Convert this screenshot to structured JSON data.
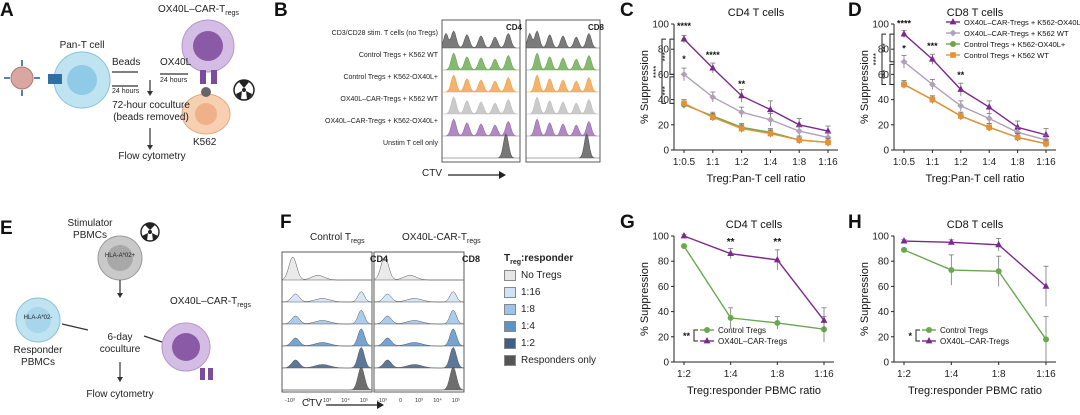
{
  "panel_labels": {
    "A": "A",
    "B": "B",
    "C": "C",
    "D": "D",
    "E": "E",
    "F": "F",
    "G": "G",
    "H": "H"
  },
  "panelA": {
    "pan_t": "Pan-T cell",
    "car": "OX40L–CAR-T",
    "car_sub": "regs",
    "beads": "Beads",
    "ox40l": "OX40L",
    "h24a": "24 hours",
    "h24b": "24 hours",
    "coculture_1": "72-hour coculture",
    "coculture_2": "(beads removed)",
    "k562": "K562",
    "flow": "Flow cytometry"
  },
  "panelB": {
    "rows": [
      "CD3/CD28 stim. T cells (no Tregs)",
      "Control Tregs + K562 WT",
      "Control Tregs + K562-OX40L+",
      "OX40L–CAR-Tregs + K562 WT",
      "OX40L–CAR-Tregs + K562-OX40L+",
      "Unstim T cell only"
    ],
    "hist1": "CD4",
    "hist2": "CD8",
    "ctv": "CTV",
    "colors": [
      "#5a5a5a",
      "#6aa84f",
      "#f0a04b",
      "#bdbdbd",
      "#9b6bb0",
      "#555555"
    ]
  },
  "panelE": {
    "stimulator_1": "Stimulator",
    "stimulator_2": "PBMCs",
    "hla_pos": "HLA-A*02+",
    "hla_neg": "HLA-A*02-",
    "car": "OX40L–CAR-T",
    "car_sub": "regs",
    "responder_1": "Responder",
    "responder_2": "PBMCs",
    "coculture_1": "6-day",
    "coculture_2": "coculture",
    "flow": "Flow cytometry"
  },
  "panelF": {
    "title1": "Control T",
    "title1_sub": "regs",
    "title2": "OX40L-CAR-T",
    "title2_sub": "regs",
    "hist1": "CD4",
    "hist2": "CD8",
    "ctv": "CTV",
    "legend_title": "T",
    "legend_title_sub": "reg",
    "legend_title_rest": ":responder",
    "legend": [
      {
        "label": "No Tregs",
        "color": "#e6e6e6"
      },
      {
        "label": "1:16",
        "color": "#cfe2f6"
      },
      {
        "label": "1:8",
        "color": "#9cc3ea"
      },
      {
        "label": "1:4",
        "color": "#5f93c8"
      },
      {
        "label": "1:2",
        "color": "#3f5f86"
      },
      {
        "label": "Responders only",
        "color": "#555555"
      }
    ],
    "axis_ticks": [
      "-10³",
      "0",
      "10³",
      "10⁴",
      "10⁵"
    ]
  },
  "chart_data": [
    {
      "id": "C",
      "type": "line",
      "title": "CD4 T cells",
      "xlabel": "Treg:Pan-T cell ratio",
      "ylabel": "% Suppression",
      "categories": [
        "1:0.5",
        "1:1",
        "1:2",
        "1:4",
        "1:8",
        "1:16"
      ],
      "ylim": [
        0,
        100
      ],
      "yticks": [
        0,
        20,
        40,
        60,
        80,
        100
      ],
      "series": [
        {
          "name": "OX40L–CAR-Tregs + K562-OX40L+",
          "color": "#7b2a8c",
          "marker": "triangle",
          "values": [
            88,
            65,
            43,
            32,
            20,
            15
          ],
          "err": [
            3,
            4,
            5,
            7,
            5,
            4
          ]
        },
        {
          "name": "OX40L–CAR-Tregs + K562 WT",
          "color": "#b0a0b8",
          "marker": "diamond",
          "values": [
            60,
            42,
            30,
            24,
            15,
            10
          ],
          "err": [
            5,
            4,
            4,
            5,
            4,
            4
          ]
        },
        {
          "name": "Control Tregs + K562-OX40L+",
          "color": "#6aa84f",
          "marker": "circle",
          "values": [
            36,
            27,
            18,
            14,
            8,
            6
          ],
          "err": [
            3,
            3,
            3,
            3,
            3,
            3
          ]
        },
        {
          "name": "Control Tregs + K562 WT",
          "color": "#e69138",
          "marker": "square",
          "values": [
            37,
            26,
            17,
            13,
            8,
            6
          ],
          "err": [
            3,
            3,
            3,
            3,
            3,
            3
          ]
        }
      ],
      "sig": [
        "****",
        "***",
        "****",
        "**",
        "*",
        "***",
        "****"
      ]
    },
    {
      "id": "D",
      "type": "line",
      "title": "CD8 T cells",
      "xlabel": "Treg:Pan-T cell ratio",
      "ylabel": "% Suppression",
      "categories": [
        "1:0.5",
        "1:1",
        "1:2",
        "1:4",
        "1:8",
        "1:16"
      ],
      "ylim": [
        0,
        100
      ],
      "yticks": [
        0,
        20,
        40,
        60,
        80,
        100
      ],
      "series": [
        {
          "name": "OX40L–CAR-Tregs + K562-OX40L+",
          "color": "#7b2a8c",
          "marker": "triangle",
          "values": [
            92,
            72,
            48,
            34,
            18,
            12
          ],
          "err": [
            3,
            4,
            5,
            5,
            5,
            5
          ]
        },
        {
          "name": "OX40L–CAR-Tregs + K562 WT",
          "color": "#b0a0b8",
          "marker": "diamond",
          "values": [
            70,
            52,
            35,
            25,
            14,
            8
          ],
          "err": [
            5,
            4,
            4,
            4,
            4,
            4
          ]
        },
        {
          "name": "Control Tregs + K562-OX40L+",
          "color": "#6aa84f",
          "marker": "circle",
          "values": [
            52,
            40,
            27,
            18,
            10,
            5
          ],
          "err": [
            3,
            3,
            3,
            3,
            3,
            3
          ]
        },
        {
          "name": "Control Tregs + K562 WT",
          "color": "#e69138",
          "marker": "square",
          "values": [
            52,
            40,
            27,
            18,
            10,
            5
          ],
          "err": [
            3,
            3,
            3,
            3,
            3,
            3
          ]
        }
      ],
      "sig": [
        "****",
        "*",
        "***",
        "****",
        "***",
        "**",
        "***"
      ]
    },
    {
      "id": "G",
      "type": "line",
      "title": "CD4 T cells",
      "xlabel": "Treg:responder PBMC ratio",
      "ylabel": "% Suppression",
      "categories": [
        "1:2",
        "1:4",
        "1:8",
        "1:16"
      ],
      "ylim": [
        0,
        100
      ],
      "yticks": [
        0,
        20,
        40,
        60,
        80,
        100
      ],
      "series": [
        {
          "name": "Control Tregs",
          "color": "#6aa84f",
          "marker": "circle",
          "values": [
            92,
            35,
            31,
            26
          ],
          "err": [
            1,
            8,
            5,
            10
          ]
        },
        {
          "name": "OX40L–CAR-Tregs",
          "color": "#7b2a8c",
          "marker": "triangle",
          "values": [
            100,
            86,
            81,
            33
          ],
          "err": [
            1,
            4,
            8,
            10
          ]
        }
      ],
      "sig": [
        "**",
        "**",
        "**"
      ]
    },
    {
      "id": "H",
      "type": "line",
      "title": "CD8 T cells",
      "xlabel": "Treg:responder PBMC ratio",
      "ylabel": "% Suppression",
      "categories": [
        "1:2",
        "1:4",
        "1:8",
        "1:16"
      ],
      "ylim": [
        0,
        100
      ],
      "yticks": [
        0,
        20,
        40,
        60,
        80,
        100
      ],
      "series": [
        {
          "name": "Control Tregs",
          "color": "#6aa84f",
          "marker": "circle",
          "values": [
            89,
            73,
            72,
            18
          ],
          "err": [
            1,
            12,
            12,
            18
          ]
        },
        {
          "name": "OX40L–CAR-Tregs",
          "color": "#7b2a8c",
          "marker": "triangle",
          "values": [
            96,
            95,
            93,
            60
          ],
          "err": [
            1,
            2,
            5,
            16
          ]
        }
      ],
      "sig": [
        "*"
      ]
    }
  ]
}
